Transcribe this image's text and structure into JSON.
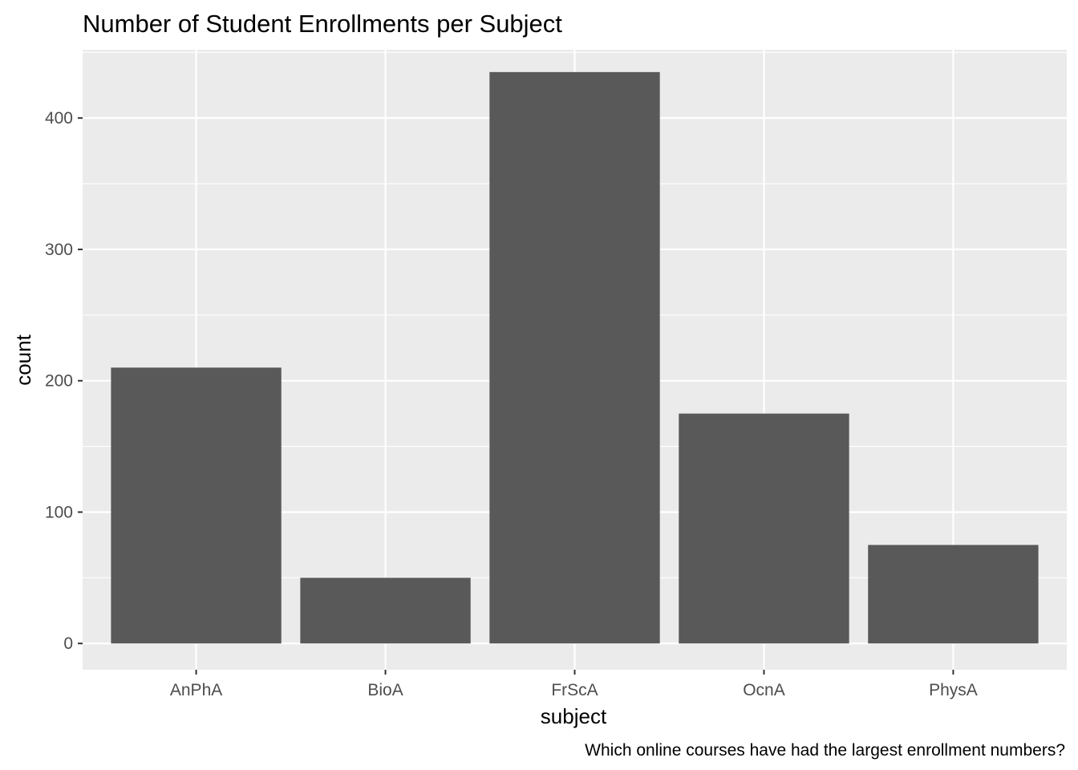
{
  "chart_data": {
    "type": "bar",
    "title": "Number of Student Enrollments per Subject",
    "xlabel": "subject",
    "ylabel": "count",
    "caption": "Which online courses have had the largest enrollment numbers?",
    "categories": [
      "AnPhA",
      "BioA",
      "FrScA",
      "OcnA",
      "PhysA"
    ],
    "values": [
      210,
      50,
      435,
      175,
      75
    ],
    "ylim": [
      -20,
      452
    ],
    "yticks": [
      0,
      100,
      200,
      300,
      400
    ],
    "grid": true,
    "legend": "none",
    "colors": {
      "bar": "#595959",
      "panel": "#ebebeb",
      "grid": "#ffffff",
      "tick_text": "#4d4d4d",
      "tick_mark": "#333333"
    }
  }
}
